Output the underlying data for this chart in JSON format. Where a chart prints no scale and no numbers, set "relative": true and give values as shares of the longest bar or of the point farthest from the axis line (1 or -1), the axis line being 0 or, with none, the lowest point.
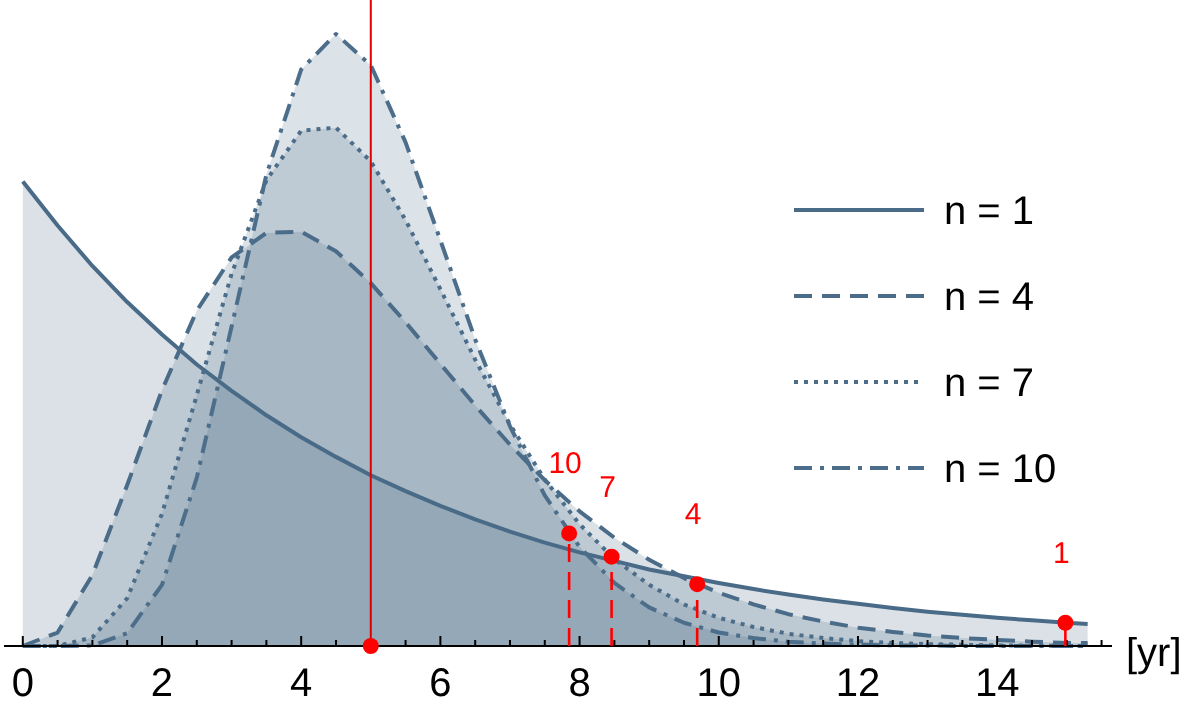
{
  "chart_data": {
    "type": "area",
    "relative": true,
    "xlabel": "[yr]",
    "xlim": [
      -0.27,
      15.65
    ],
    "xticks": [
      0,
      {
        "value": 0.5,
        "label": null
      },
      {
        "value": 1,
        "label": null
      },
      {
        "value": 1.5,
        "label": null
      },
      2,
      {
        "value": 2.5,
        "label": null
      },
      {
        "value": 3,
        "label": null
      },
      {
        "value": 3.5,
        "label": null
      },
      4,
      {
        "value": 4.5,
        "label": null
      },
      {
        "value": 5,
        "label": null
      },
      {
        "value": 5.5,
        "label": null
      },
      6,
      {
        "value": 6.5,
        "label": null
      },
      {
        "value": 7,
        "label": null
      },
      {
        "value": 7.5,
        "label": null
      },
      8,
      {
        "value": 8.5,
        "label": null
      },
      {
        "value": 9,
        "label": null
      },
      {
        "value": 9.5,
        "label": null
      },
      10,
      {
        "value": 10.5,
        "label": null
      },
      {
        "value": 11,
        "label": null
      },
      {
        "value": 11.5,
        "label": null
      },
      12,
      {
        "value": 12.5,
        "label": null
      },
      {
        "value": 13,
        "label": null
      },
      {
        "value": 13.5,
        "label": null
      },
      14,
      {
        "value": 14.5,
        "label": null
      },
      {
        "value": 15,
        "label": null
      },
      {
        "value": 15.5,
        "label": null
      }
    ],
    "x": [
      0,
      0.5,
      1,
      1.5,
      2,
      2.5,
      3,
      3.5,
      4,
      4.5,
      5,
      5.5,
      6,
      6.5,
      7,
      7.5,
      8,
      8.5,
      9,
      9.5,
      10,
      10.5,
      11,
      11.5,
      12,
      12.5,
      13,
      13.5,
      14,
      14.5,
      15,
      15.3
    ],
    "grid": false,
    "legend": "right",
    "tick_labels": "x",
    "series": [
      {
        "name": "n = 1",
        "color": "#4a6b87",
        "line_style": "solid",
        "values": [
          0.759,
          0.687,
          0.621,
          0.562,
          0.509,
          0.46,
          0.417,
          0.377,
          0.341,
          0.309,
          0.279,
          0.253,
          0.229,
          0.207,
          0.187,
          0.169,
          0.153,
          0.139,
          0.125,
          0.114,
          0.103,
          0.093,
          0.084,
          0.076,
          0.069,
          0.062,
          0.056,
          0.051,
          0.046,
          0.042,
          0.038,
          0.036
        ]
      },
      {
        "name": "n = 4",
        "color": "#4b6c88",
        "line_style": "dashed",
        "values": [
          0,
          0.022,
          0.116,
          0.263,
          0.418,
          0.548,
          0.635,
          0.675,
          0.677,
          0.645,
          0.593,
          0.529,
          0.461,
          0.393,
          0.329,
          0.271,
          0.22,
          0.177,
          0.141,
          0.111,
          0.087,
          0.068,
          0.052,
          0.04,
          0.03,
          0.023,
          0.017,
          0.013,
          0.01,
          0.007,
          0.005,
          0.005
        ]
      },
      {
        "name": "n = 7",
        "color": "#4c6d89",
        "line_style": "dotted",
        "values": [
          0,
          0,
          0.014,
          0.078,
          0.216,
          0.41,
          0.608,
          0.761,
          0.842,
          0.847,
          0.792,
          0.696,
          0.583,
          0.468,
          0.362,
          0.272,
          0.199,
          0.142,
          0.1,
          0.068,
          0.046,
          0.031,
          0.02,
          0.013,
          0.008,
          0.005,
          0.003,
          0.002,
          0.001,
          0.001,
          0,
          0
        ]
      },
      {
        "name": "n = 10",
        "color": "#4d6e8a",
        "line_style": "dashdot",
        "values": [
          0,
          0,
          0.001,
          0.021,
          0.1,
          0.275,
          0.522,
          0.77,
          0.942,
          1,
          0.949,
          0.823,
          0.663,
          0.501,
          0.359,
          0.246,
          0.162,
          0.103,
          0.063,
          0.038,
          0.022,
          0.013,
          0.007,
          0.004,
          0.002,
          0.001,
          0.001,
          0,
          0,
          0,
          0,
          0
        ]
      },
      {
        "type": "lollipop",
        "color": "#ff0000",
        "line_style": "dashed",
        "x": [
          7.85,
          8.46,
          9.69,
          14.98
        ],
        "values": [
          0.184,
          0.146,
          0.101,
          0.038
        ]
      },
      {
        "type": "scatter",
        "color": "#ff0000",
        "x": [
          5
        ],
        "values": [
          0
        ]
      }
    ],
    "ref_lines": [
      {
        "axis": "x",
        "value": 5,
        "color": "#e00000"
      }
    ],
    "annotations": [
      {
        "text": "10",
        "x": 7.85,
        "y": 0.184
      },
      {
        "text": "7",
        "x": 8.46,
        "y": 0.146
      },
      {
        "text": "4",
        "x": 9.69,
        "y": 0.101
      },
      {
        "text": "1",
        "x": 14.98,
        "y": 0.038
      }
    ]
  }
}
